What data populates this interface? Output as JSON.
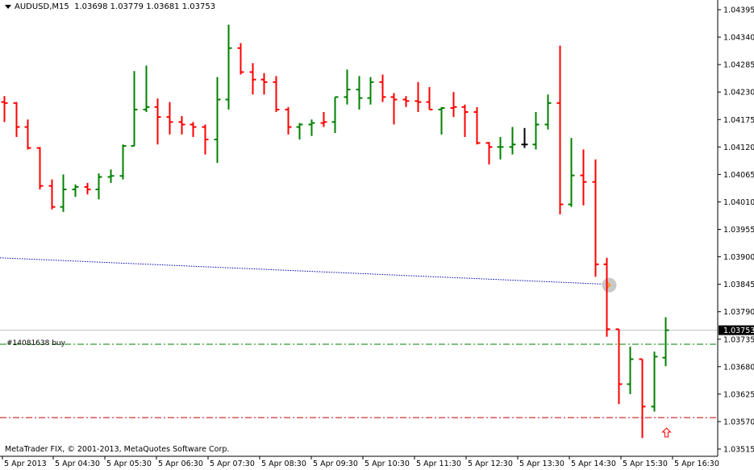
{
  "header": {
    "symbol": "AUDUSD,M15",
    "ohlc": "1.03698 1.03779 1.03681 1.03753"
  },
  "copyright": "MetaTrader FIX, © 2001-2013, MetaQuotes Software Corp.",
  "order_label": "#14081638 buy",
  "colors": {
    "bull": "#008000",
    "bear": "#ff0000",
    "current": "#000000",
    "ma_line": "#0000aa",
    "order_line": "#008000",
    "stop_line": "#c00000",
    "price_line": "#c0c0c0",
    "arrow": "#ff0000"
  },
  "chart_data": {
    "type": "ohlc",
    "ylim": [
      1.03487,
      1.04418
    ],
    "y_ticks": [
      "1.04395",
      "1.04340",
      "1.04285",
      "1.04230",
      "1.04175",
      "1.04120",
      "1.04065",
      "1.04010",
      "1.03955",
      "1.03900",
      "1.03845",
      "1.03790",
      "1.03735",
      "1.03680",
      "1.03625",
      "1.03570",
      "1.03515"
    ],
    "x_labels": [
      "5 Apr 2013",
      "5 Apr 04:30",
      "5 Apr 05:30",
      "5 Apr 06:30",
      "5 Apr 07:30",
      "5 Apr 08:30",
      "5 Apr 09:30",
      "5 Apr 10:30",
      "5 Apr 11:30",
      "5 Apr 12:30",
      "5 Apr 13:30",
      "5 Apr 14:30",
      "5 Apr 15:30",
      "5 Apr 16:30"
    ],
    "current_price": "1.03753",
    "order_price": 1.03725,
    "stop_price": 1.03578,
    "ma_line": {
      "start": 1.03898,
      "end": 1.03845
    },
    "bars": [
      {
        "o": 1.0421,
        "h": 1.04222,
        "l": 1.0417,
        "c": 1.04208,
        "d": "bear"
      },
      {
        "o": 1.04208,
        "h": 1.0421,
        "l": 1.0414,
        "c": 1.0416,
        "d": "bear"
      },
      {
        "o": 1.0416,
        "h": 1.04175,
        "l": 1.04115,
        "c": 1.04118,
        "d": "bear"
      },
      {
        "o": 1.04118,
        "h": 1.0412,
        "l": 1.04035,
        "c": 1.04042,
        "d": "bear"
      },
      {
        "o": 1.04042,
        "h": 1.04055,
        "l": 1.03995,
        "c": 1.04,
        "d": "bear"
      },
      {
        "o": 1.04,
        "h": 1.04065,
        "l": 1.0399,
        "c": 1.04035,
        "d": "bull"
      },
      {
        "o": 1.04035,
        "h": 1.04045,
        "l": 1.0402,
        "c": 1.0404,
        "d": "bull"
      },
      {
        "o": 1.0404,
        "h": 1.04048,
        "l": 1.04025,
        "c": 1.04035,
        "d": "bear"
      },
      {
        "o": 1.04035,
        "h": 1.04067,
        "l": 1.04015,
        "c": 1.0406,
        "d": "bull"
      },
      {
        "o": 1.0406,
        "h": 1.04075,
        "l": 1.04048,
        "c": 1.04062,
        "d": "bull"
      },
      {
        "o": 1.04062,
        "h": 1.04125,
        "l": 1.04055,
        "c": 1.04122,
        "d": "bull"
      },
      {
        "o": 1.04122,
        "h": 1.04272,
        "l": 1.04122,
        "c": 1.04195,
        "d": "bull"
      },
      {
        "o": 1.04195,
        "h": 1.04283,
        "l": 1.0419,
        "c": 1.042,
        "d": "bull"
      },
      {
        "o": 1.042,
        "h": 1.04217,
        "l": 1.04125,
        "c": 1.0418,
        "d": "bear"
      },
      {
        "o": 1.0418,
        "h": 1.0421,
        "l": 1.04145,
        "c": 1.0417,
        "d": "bear"
      },
      {
        "o": 1.0417,
        "h": 1.04182,
        "l": 1.04145,
        "c": 1.04165,
        "d": "bear"
      },
      {
        "o": 1.04165,
        "h": 1.0417,
        "l": 1.0414,
        "c": 1.0416,
        "d": "bear"
      },
      {
        "o": 1.0416,
        "h": 1.04165,
        "l": 1.04105,
        "c": 1.04135,
        "d": "bear"
      },
      {
        "o": 1.04135,
        "h": 1.0426,
        "l": 1.04088,
        "c": 1.04215,
        "d": "bull"
      },
      {
        "o": 1.04215,
        "h": 1.04365,
        "l": 1.04195,
        "c": 1.04318,
        "d": "bull"
      },
      {
        "o": 1.04318,
        "h": 1.04328,
        "l": 1.04265,
        "c": 1.0427,
        "d": "bear"
      },
      {
        "o": 1.0427,
        "h": 1.04288,
        "l": 1.04225,
        "c": 1.04255,
        "d": "bear"
      },
      {
        "o": 1.04255,
        "h": 1.04268,
        "l": 1.04225,
        "c": 1.0425,
        "d": "bear"
      },
      {
        "o": 1.0425,
        "h": 1.04262,
        "l": 1.0419,
        "c": 1.04195,
        "d": "bear"
      },
      {
        "o": 1.04195,
        "h": 1.042,
        "l": 1.04145,
        "c": 1.0416,
        "d": "bear"
      },
      {
        "o": 1.0416,
        "h": 1.04168,
        "l": 1.04135,
        "c": 1.04165,
        "d": "bull"
      },
      {
        "o": 1.04165,
        "h": 1.04175,
        "l": 1.04142,
        "c": 1.04168,
        "d": "bull"
      },
      {
        "o": 1.04168,
        "h": 1.0419,
        "l": 1.0416,
        "c": 1.0417,
        "d": "bear"
      },
      {
        "o": 1.0417,
        "h": 1.0422,
        "l": 1.04148,
        "c": 1.0422,
        "d": "bull"
      },
      {
        "o": 1.0422,
        "h": 1.04275,
        "l": 1.04205,
        "c": 1.04235,
        "d": "bull"
      },
      {
        "o": 1.04235,
        "h": 1.04262,
        "l": 1.04195,
        "c": 1.04218,
        "d": "bull"
      },
      {
        "o": 1.04218,
        "h": 1.0426,
        "l": 1.04205,
        "c": 1.0425,
        "d": "bull"
      },
      {
        "o": 1.0425,
        "h": 1.04265,
        "l": 1.0421,
        "c": 1.0422,
        "d": "bear"
      },
      {
        "o": 1.0422,
        "h": 1.04228,
        "l": 1.04165,
        "c": 1.04215,
        "d": "bear"
      },
      {
        "o": 1.04215,
        "h": 1.04222,
        "l": 1.042,
        "c": 1.04212,
        "d": "bear"
      },
      {
        "o": 1.04212,
        "h": 1.0425,
        "l": 1.0419,
        "c": 1.0421,
        "d": "bear"
      },
      {
        "o": 1.0421,
        "h": 1.0424,
        "l": 1.04195,
        "c": 1.04195,
        "d": "bear"
      },
      {
        "o": 1.04195,
        "h": 1.042,
        "l": 1.04145,
        "c": 1.04198,
        "d": "bull"
      },
      {
        "o": 1.04198,
        "h": 1.0423,
        "l": 1.0418,
        "c": 1.042,
        "d": "bear"
      },
      {
        "o": 1.042,
        "h": 1.04205,
        "l": 1.0414,
        "c": 1.0419,
        "d": "bear"
      },
      {
        "o": 1.0419,
        "h": 1.042,
        "l": 1.04125,
        "c": 1.04128,
        "d": "bear"
      },
      {
        "o": 1.04128,
        "h": 1.0413,
        "l": 1.04085,
        "c": 1.0412,
        "d": "bear"
      },
      {
        "o": 1.0412,
        "h": 1.0414,
        "l": 1.04095,
        "c": 1.0412,
        "d": "bull"
      },
      {
        "o": 1.0412,
        "h": 1.0416,
        "l": 1.04105,
        "c": 1.04125,
        "d": "bull"
      },
      {
        "o": 1.04125,
        "h": 1.04158,
        "l": 1.04118,
        "c": 1.04125,
        "d": "neutral"
      },
      {
        "o": 1.04125,
        "h": 1.0419,
        "l": 1.04115,
        "c": 1.04165,
        "d": "bull"
      },
      {
        "o": 1.04165,
        "h": 1.04225,
        "l": 1.04155,
        "c": 1.04208,
        "d": "bull"
      },
      {
        "o": 1.04208,
        "h": 1.04323,
        "l": 1.03985,
        "c": 1.04005,
        "d": "bear"
      },
      {
        "o": 1.04005,
        "h": 1.04138,
        "l": 1.04,
        "c": 1.04063,
        "d": "bull"
      },
      {
        "o": 1.04063,
        "h": 1.04115,
        "l": 1.04003,
        "c": 1.0405,
        "d": "bear"
      },
      {
        "o": 1.0405,
        "h": 1.04095,
        "l": 1.0386,
        "c": 1.03885,
        "d": "bear"
      },
      {
        "o": 1.03885,
        "h": 1.03898,
        "l": 1.0374,
        "c": 1.03755,
        "d": "bear"
      },
      {
        "o": 1.03755,
        "h": 1.03755,
        "l": 1.03605,
        "c": 1.03645,
        "d": "bear"
      },
      {
        "o": 1.03645,
        "h": 1.0372,
        "l": 1.03625,
        "c": 1.03695,
        "d": "bull"
      },
      {
        "o": 1.03695,
        "h": 1.03695,
        "l": 1.03537,
        "c": 1.036,
        "d": "bear"
      },
      {
        "o": 1.036,
        "h": 1.0371,
        "l": 1.0359,
        "c": 1.037,
        "d": "bull"
      },
      {
        "o": 1.03698,
        "h": 1.03779,
        "l": 1.03681,
        "c": 1.03753,
        "d": "bull"
      }
    ]
  }
}
